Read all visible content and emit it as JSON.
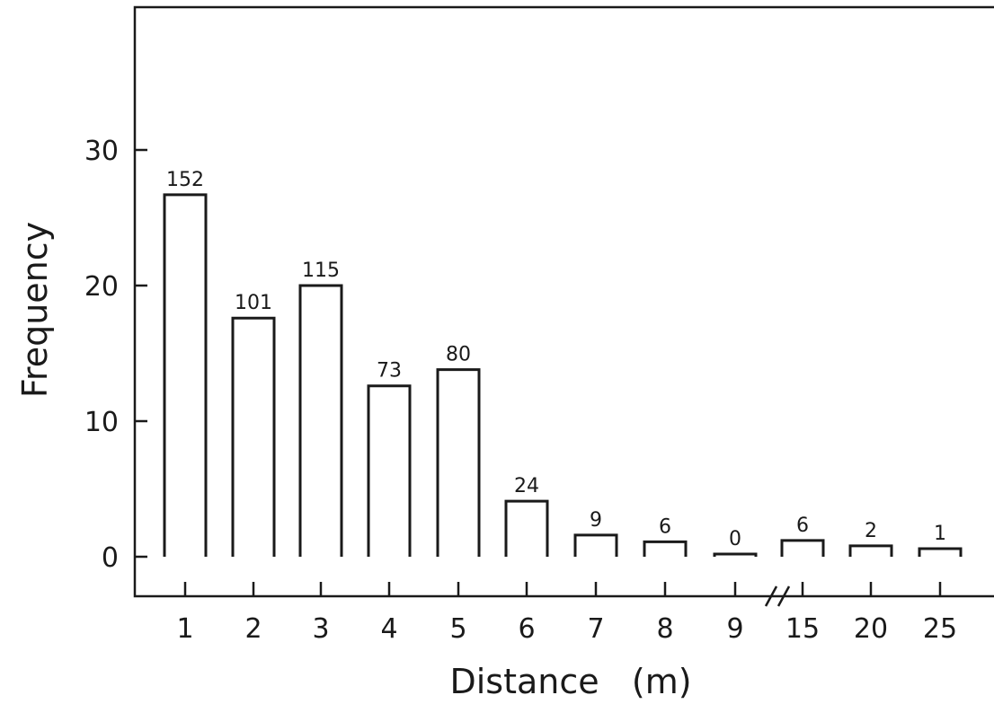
{
  "chart_data": {
    "type": "bar",
    "xlabel": "Distance   (m)",
    "ylabel": "Frequency",
    "categories": [
      "1",
      "2",
      "3",
      "4",
      "5",
      "6",
      "7",
      "8",
      "9",
      "15",
      "20",
      "25"
    ],
    "values": [
      26.7,
      17.6,
      20,
      12.6,
      13.8,
      4.1,
      1.6,
      1.1,
      0.2,
      1.2,
      0.8,
      0.6
    ],
    "data_labels": [
      "152",
      "101",
      "115",
      "73",
      "80",
      "24",
      "9",
      "6",
      "0",
      "6",
      "2",
      "1"
    ],
    "yticks": [
      0,
      10,
      20,
      30
    ],
    "ytick_labels": [
      "0",
      "10",
      "20",
      "30"
    ],
    "ylim": [
      -3,
      40
    ],
    "axis_break_between": [
      "9",
      "15"
    ],
    "grid": false,
    "colors": {
      "ink": "#1a1a1a",
      "background": "#ffffff"
    }
  }
}
